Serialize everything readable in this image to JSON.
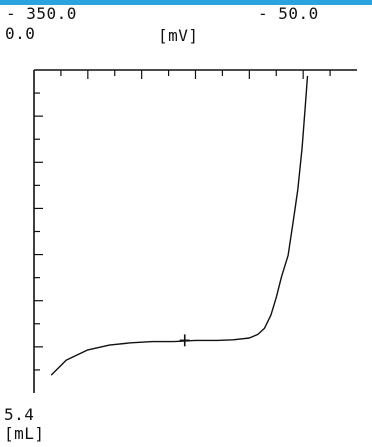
{
  "colors": {
    "accent_bar": "#2aa3df",
    "ink": "#111111",
    "background": "#ffffff"
  },
  "labels": {
    "top_left_value": "- 350.0",
    "top_right_value": "- 50.0",
    "left_start_value": "0.0",
    "potential_unit": "[mV]",
    "bottom_value": "5.4",
    "volume_unit": "[mL]"
  },
  "chart_data": {
    "type": "line",
    "title": "",
    "xlabel": "[mV]",
    "ylabel": "[mL]",
    "xlim": [
      -350.0,
      -50.0
    ],
    "ylim": [
      0.0,
      5.4
    ],
    "x_ticks": 12,
    "y_ticks": 14,
    "grid": false,
    "series": [
      {
        "points": [
          [
            -334,
            0.3
          ],
          [
            -320,
            0.55
          ],
          [
            -300,
            0.72
          ],
          [
            -280,
            0.8
          ],
          [
            -260,
            0.84
          ],
          [
            -240,
            0.86
          ],
          [
            -220,
            0.86
          ],
          [
            -200,
            0.88
          ],
          [
            -180,
            0.88
          ],
          [
            -165,
            0.89
          ],
          [
            -150,
            0.92
          ],
          [
            -142,
            0.98
          ],
          [
            -136,
            1.08
          ],
          [
            -130,
            1.3
          ],
          [
            -125,
            1.6
          ],
          [
            -120,
            1.95
          ],
          [
            -114,
            2.3
          ],
          [
            -109,
            2.9
          ],
          [
            -105,
            3.4
          ],
          [
            -101,
            4.1
          ],
          [
            -98,
            4.8
          ],
          [
            -96,
            5.3
          ]
        ]
      }
    ],
    "marker": {
      "x": -210,
      "y": 0.88
    }
  }
}
